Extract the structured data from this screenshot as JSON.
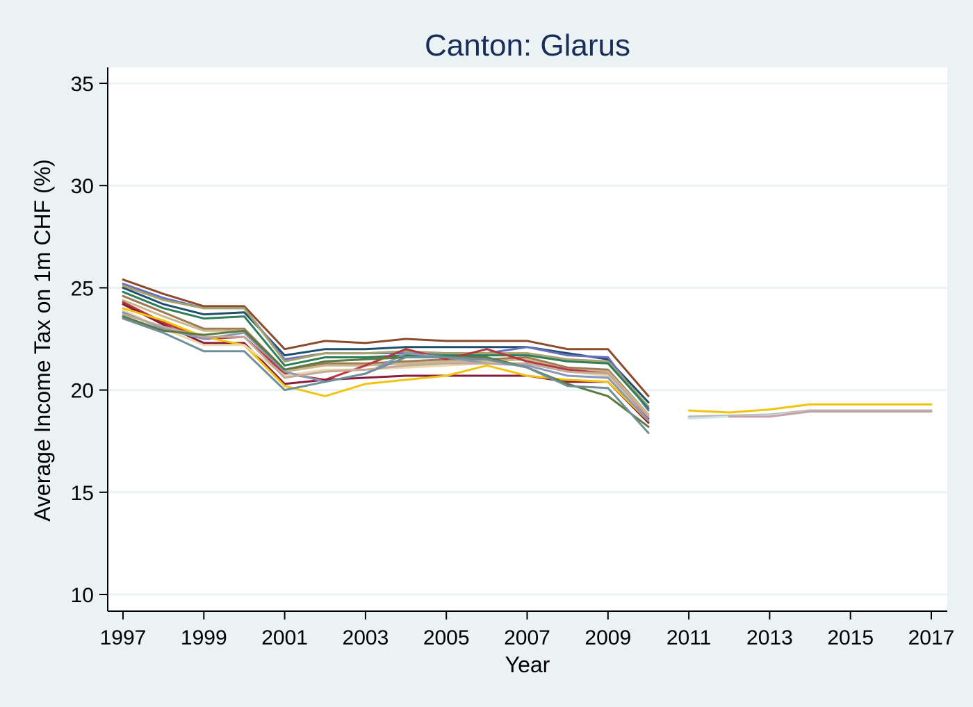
{
  "chart_data": {
    "type": "line",
    "title": "Canton: Glarus",
    "xlabel": "Year",
    "ylabel": "Average Income Tax on 1m CHF (%)",
    "xlim": [
      1997,
      2017
    ],
    "ylim": [
      10,
      35
    ],
    "x_ticks": [
      "1997",
      "1999",
      "2001",
      "2003",
      "2005",
      "2007",
      "2009",
      "2011",
      "2013",
      "2015",
      "2017"
    ],
    "y_ticks": [
      "10",
      "15",
      "20",
      "25",
      "30",
      "35"
    ],
    "grid": true,
    "legend": "none",
    "x": [
      1997,
      1998,
      1999,
      2000,
      2001,
      2002,
      2003,
      2004,
      2005,
      2006,
      2007,
      2008,
      2009,
      2010,
      2011,
      2012,
      2013,
      2014,
      2015,
      2016,
      2017
    ],
    "series": [
      {
        "color": "#8b4a2b",
        "values": [
          25.4,
          24.7,
          24.1,
          24.1,
          22.0,
          22.4,
          22.3,
          22.5,
          22.4,
          22.4,
          22.4,
          22.0,
          22.0,
          19.7,
          null,
          null,
          null,
          null,
          null,
          null,
          null
        ]
      },
      {
        "color": "#1f4e6e",
        "values": [
          25.0,
          24.2,
          23.7,
          23.8,
          21.7,
          22.0,
          22.0,
          22.1,
          22.1,
          22.1,
          22.1,
          21.8,
          21.5,
          19.4,
          null,
          null,
          null,
          null,
          null,
          null,
          null
        ]
      },
      {
        "color": "#6a6fc2",
        "values": [
          25.2,
          24.5,
          24.0,
          24.0,
          21.5,
          21.8,
          21.8,
          21.8,
          21.8,
          21.8,
          22.1,
          21.7,
          21.6,
          19.0,
          null,
          null,
          null,
          null,
          null,
          null,
          null
        ]
      },
      {
        "color": "#a8a46a",
        "values": [
          25.1,
          24.4,
          24.0,
          24.0,
          21.4,
          21.8,
          21.8,
          21.9,
          21.8,
          21.8,
          21.8,
          21.5,
          21.4,
          19.2,
          null,
          null,
          null,
          null,
          null,
          null,
          null
        ]
      },
      {
        "color": "#2e7d5b",
        "values": [
          24.8,
          24.0,
          23.5,
          23.6,
          21.2,
          21.6,
          21.6,
          21.7,
          21.7,
          21.7,
          21.7,
          21.4,
          21.3,
          19.1,
          null,
          null,
          null,
          null,
          null,
          null,
          null
        ]
      },
      {
        "color": "#9e7b54",
        "values": [
          24.6,
          23.8,
          23.0,
          23.0,
          21.0,
          21.3,
          21.3,
          21.4,
          21.5,
          21.5,
          21.6,
          21.1,
          21.0,
          18.8,
          null,
          null,
          null,
          null,
          null,
          null,
          null
        ]
      },
      {
        "color": "#c9b88e",
        "values": [
          24.4,
          23.6,
          22.9,
          22.9,
          20.9,
          21.2,
          21.2,
          21.3,
          21.4,
          21.4,
          21.5,
          21.0,
          20.9,
          18.8,
          null,
          null,
          null,
          null,
          null,
          null,
          null
        ]
      },
      {
        "color": "#b5373f",
        "values": [
          24.3,
          23.3,
          22.5,
          22.6,
          20.8,
          20.5,
          21.2,
          22.0,
          21.5,
          22.0,
          21.4,
          21.0,
          20.8,
          18.6,
          null,
          null,
          null,
          null,
          null,
          null,
          null
        ]
      },
      {
        "color": "#8a1c3b",
        "values": [
          24.2,
          23.2,
          22.3,
          22.3,
          20.3,
          20.5,
          20.6,
          20.7,
          20.7,
          20.7,
          20.7,
          20.4,
          20.4,
          18.4,
          null,
          null,
          null,
          null,
          null,
          null,
          null
        ]
      },
      {
        "color": "#f2c40f",
        "values": [
          24.0,
          23.4,
          22.6,
          22.2,
          20.2,
          19.7,
          20.3,
          20.5,
          20.7,
          21.2,
          20.7,
          20.5,
          20.4,
          18.5,
          null,
          null,
          null,
          null,
          null,
          null,
          null
        ]
      },
      {
        "color": "#e8d9b0",
        "values": [
          23.9,
          23.0,
          22.2,
          22.2,
          20.7,
          21.0,
          21.0,
          21.1,
          21.2,
          21.3,
          21.3,
          20.9,
          20.7,
          18.5,
          null,
          null,
          null,
          null,
          null,
          null,
          null
        ]
      },
      {
        "color": "#8898b8",
        "values": [
          23.8,
          23.0,
          22.5,
          22.8,
          20.9,
          20.4,
          20.8,
          21.8,
          21.6,
          21.3,
          21.2,
          20.7,
          20.6,
          18.5,
          null,
          null,
          null,
          null,
          null,
          null,
          null
        ]
      },
      {
        "color": "#c4a99a",
        "values": [
          23.7,
          23.1,
          22.6,
          22.6,
          20.6,
          20.9,
          21.0,
          21.2,
          21.3,
          21.3,
          21.3,
          20.9,
          20.8,
          18.7,
          null,
          null,
          null,
          null,
          null,
          null,
          null
        ]
      },
      {
        "color": "#5f7a3e",
        "values": [
          23.6,
          22.9,
          22.7,
          22.9,
          21.0,
          21.4,
          21.5,
          21.6,
          21.6,
          21.6,
          21.1,
          20.3,
          19.7,
          18.2,
          null,
          null,
          null,
          null,
          null,
          null,
          null
        ]
      },
      {
        "color": "#6f8f9a",
        "values": [
          23.5,
          22.8,
          21.9,
          21.9,
          20.0,
          20.4,
          20.8,
          21.6,
          21.6,
          21.5,
          21.1,
          20.2,
          20.1,
          17.9,
          null,
          null,
          null,
          null,
          null,
          null,
          null
        ]
      },
      {
        "color": "#f2c40f",
        "values": [
          null,
          null,
          null,
          null,
          null,
          null,
          null,
          null,
          null,
          null,
          null,
          null,
          null,
          null,
          19.0,
          18.9,
          19.05,
          19.3,
          19.3,
          19.3,
          19.3
        ]
      },
      {
        "color": "#b8b8b8",
        "values": [
          null,
          null,
          null,
          null,
          null,
          null,
          null,
          null,
          null,
          null,
          null,
          null,
          null,
          null,
          18.7,
          18.75,
          18.8,
          19.0,
          19.0,
          19.0,
          19.0
        ]
      },
      {
        "color": "#d0e4ea",
        "values": [
          null,
          null,
          null,
          null,
          null,
          null,
          null,
          null,
          null,
          null,
          null,
          null,
          null,
          null,
          18.6,
          18.7,
          18.75,
          18.95,
          18.95,
          18.95,
          18.95
        ]
      },
      {
        "color": "#c7a0a6",
        "values": [
          null,
          null,
          null,
          null,
          null,
          null,
          null,
          null,
          null,
          null,
          null,
          null,
          null,
          null,
          null,
          18.7,
          18.7,
          18.95,
          18.95,
          18.95,
          18.95
        ]
      }
    ]
  }
}
